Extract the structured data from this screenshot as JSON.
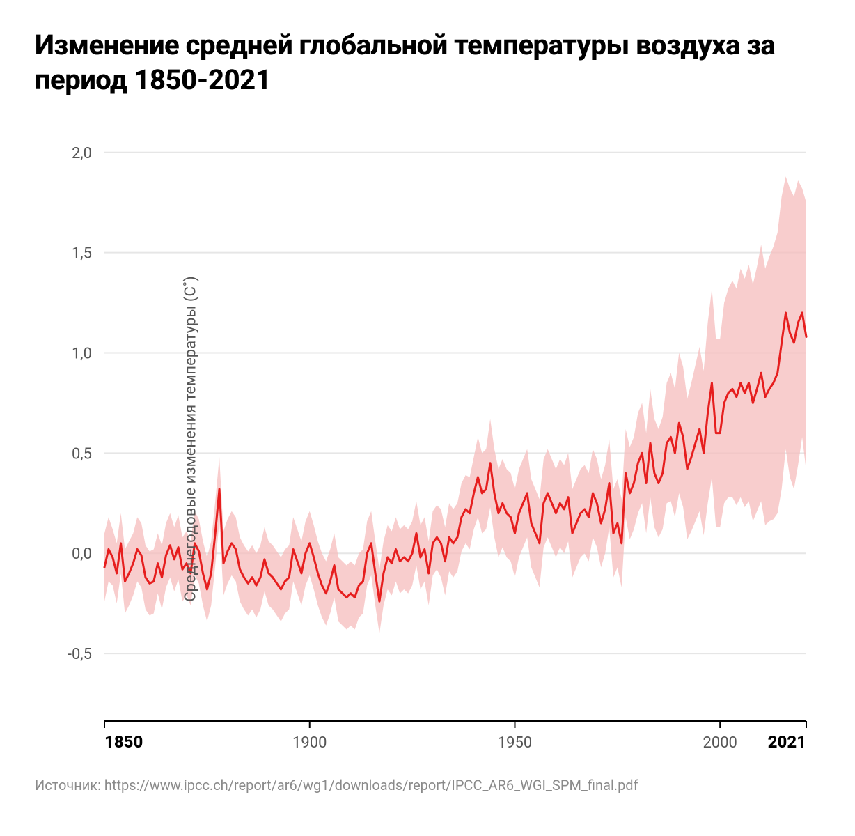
{
  "title": "Изменение средней глобальной температуры воздуха за период 1850-2021",
  "ylabel": "Среднегодовые изменения температуры (C˚)",
  "source": "Источник: https://www.ipcc.ch/report/ar6/wg1/downloads/report/IPCC_AR6_WGI_SPM_final.pdf",
  "chart": {
    "type": "line-with-band",
    "background_color": "#ffffff",
    "grid_color": "#e6e6e6",
    "axis_color": "#000000",
    "line_color": "#e61e1e",
    "line_width": 3,
    "band_color": "#f5bcbc",
    "band_opacity": 0.75,
    "xlim": [
      1850,
      2021
    ],
    "ylim": [
      -0.75,
      2.1
    ],
    "yticks": [
      -0.5,
      0.0,
      0.5,
      1.0,
      1.5,
      2.0
    ],
    "ytick_labels": [
      "-0,5",
      "0,0",
      "0,5",
      "1,0",
      "1,5",
      "2,0"
    ],
    "xticks": [
      1850,
      1900,
      1950,
      2000,
      2021
    ],
    "xtick_labels": [
      "1850",
      "1900",
      "1950",
      "2000",
      "2021"
    ],
    "xtick_bold": [
      1850,
      2021
    ],
    "title_fontsize": 40,
    "label_fontsize": 22,
    "tick_fontsize": 22,
    "years": [
      1850,
      1851,
      1852,
      1853,
      1854,
      1855,
      1856,
      1857,
      1858,
      1859,
      1860,
      1861,
      1862,
      1863,
      1864,
      1865,
      1866,
      1867,
      1868,
      1869,
      1870,
      1871,
      1872,
      1873,
      1874,
      1875,
      1876,
      1877,
      1878,
      1879,
      1880,
      1881,
      1882,
      1883,
      1884,
      1885,
      1886,
      1887,
      1888,
      1889,
      1890,
      1891,
      1892,
      1893,
      1894,
      1895,
      1896,
      1897,
      1898,
      1899,
      1900,
      1901,
      1902,
      1903,
      1904,
      1905,
      1906,
      1907,
      1908,
      1909,
      1910,
      1911,
      1912,
      1913,
      1914,
      1915,
      1916,
      1917,
      1918,
      1919,
      1920,
      1921,
      1922,
      1923,
      1924,
      1925,
      1926,
      1927,
      1928,
      1929,
      1930,
      1931,
      1932,
      1933,
      1934,
      1935,
      1936,
      1937,
      1938,
      1939,
      1940,
      1941,
      1942,
      1943,
      1944,
      1945,
      1946,
      1947,
      1948,
      1949,
      1950,
      1951,
      1952,
      1953,
      1954,
      1955,
      1956,
      1957,
      1958,
      1959,
      1960,
      1961,
      1962,
      1963,
      1964,
      1965,
      1966,
      1967,
      1968,
      1969,
      1970,
      1971,
      1972,
      1973,
      1974,
      1975,
      1976,
      1977,
      1978,
      1979,
      1980,
      1981,
      1982,
      1983,
      1984,
      1985,
      1986,
      1987,
      1988,
      1989,
      1990,
      1991,
      1992,
      1993,
      1994,
      1995,
      1996,
      1997,
      1998,
      1999,
      2000,
      2001,
      2002,
      2003,
      2004,
      2005,
      2006,
      2007,
      2008,
      2009,
      2010,
      2011,
      2012,
      2013,
      2014,
      2015,
      2016,
      2017,
      2018,
      2019,
      2020,
      2021
    ],
    "mean": [
      -0.07,
      0.02,
      -0.02,
      -0.1,
      0.05,
      -0.14,
      -0.1,
      -0.05,
      0.02,
      -0.01,
      -0.12,
      -0.15,
      -0.14,
      -0.05,
      -0.12,
      -0.01,
      0.04,
      -0.03,
      0.03,
      -0.08,
      -0.05,
      -0.1,
      0.05,
      0.01,
      -0.1,
      -0.18,
      -0.1,
      0.1,
      0.32,
      -0.05,
      0.01,
      0.05,
      0.02,
      -0.08,
      -0.12,
      -0.15,
      -0.12,
      -0.16,
      -0.12,
      -0.03,
      -0.1,
      -0.12,
      -0.15,
      -0.18,
      -0.14,
      -0.12,
      0.02,
      -0.04,
      -0.1,
      0.0,
      0.05,
      -0.02,
      -0.1,
      -0.16,
      -0.2,
      -0.14,
      -0.06,
      -0.18,
      -0.2,
      -0.22,
      -0.2,
      -0.22,
      -0.16,
      -0.14,
      0.0,
      0.05,
      -0.1,
      -0.24,
      -0.1,
      -0.02,
      -0.05,
      0.02,
      -0.04,
      -0.02,
      -0.04,
      0.0,
      0.1,
      -0.02,
      0.02,
      -0.1,
      0.05,
      0.08,
      0.05,
      -0.04,
      0.08,
      0.05,
      0.08,
      0.18,
      0.22,
      0.2,
      0.3,
      0.38,
      0.3,
      0.32,
      0.45,
      0.3,
      0.2,
      0.25,
      0.2,
      0.18,
      0.1,
      0.2,
      0.25,
      0.3,
      0.15,
      0.1,
      0.05,
      0.25,
      0.3,
      0.25,
      0.2,
      0.25,
      0.22,
      0.28,
      0.1,
      0.15,
      0.2,
      0.22,
      0.18,
      0.3,
      0.25,
      0.15,
      0.22,
      0.35,
      0.1,
      0.15,
      0.05,
      0.4,
      0.3,
      0.35,
      0.45,
      0.5,
      0.35,
      0.55,
      0.4,
      0.35,
      0.4,
      0.55,
      0.58,
      0.5,
      0.65,
      0.58,
      0.42,
      0.48,
      0.55,
      0.62,
      0.5,
      0.7,
      0.85,
      0.6,
      0.6,
      0.75,
      0.8,
      0.82,
      0.78,
      0.85,
      0.8,
      0.85,
      0.75,
      0.82,
      0.9,
      0.78,
      0.82,
      0.85,
      0.9,
      1.05,
      1.2,
      1.1,
      1.05,
      1.15,
      1.2,
      1.08
    ],
    "upper": [
      0.1,
      0.18,
      0.12,
      0.05,
      0.2,
      0.02,
      0.06,
      0.1,
      0.18,
      0.15,
      0.04,
      0.01,
      0.02,
      0.1,
      0.04,
      0.15,
      0.2,
      0.13,
      0.19,
      0.08,
      0.11,
      0.06,
      0.21,
      0.17,
      0.06,
      -0.02,
      0.06,
      0.26,
      0.48,
      0.11,
      0.17,
      0.21,
      0.18,
      0.08,
      0.04,
      0.01,
      0.04,
      0.0,
      0.04,
      0.13,
      0.06,
      0.04,
      0.01,
      -0.02,
      0.02,
      0.04,
      0.18,
      0.12,
      0.06,
      0.16,
      0.21,
      0.14,
      0.06,
      0.0,
      -0.04,
      0.02,
      0.1,
      -0.02,
      -0.04,
      -0.06,
      -0.04,
      -0.06,
      0.0,
      0.02,
      0.16,
      0.21,
      0.06,
      -0.08,
      0.06,
      0.14,
      0.11,
      0.18,
      0.12,
      0.14,
      0.12,
      0.16,
      0.26,
      0.14,
      0.18,
      0.06,
      0.21,
      0.24,
      0.22,
      0.13,
      0.25,
      0.22,
      0.25,
      0.35,
      0.39,
      0.38,
      0.48,
      0.58,
      0.5,
      0.52,
      0.67,
      0.52,
      0.42,
      0.47,
      0.42,
      0.4,
      0.32,
      0.42,
      0.47,
      0.52,
      0.37,
      0.32,
      0.27,
      0.47,
      0.52,
      0.47,
      0.42,
      0.47,
      0.44,
      0.5,
      0.32,
      0.37,
      0.42,
      0.44,
      0.4,
      0.52,
      0.47,
      0.37,
      0.44,
      0.57,
      0.32,
      0.37,
      0.27,
      0.62,
      0.53,
      0.58,
      0.7,
      0.75,
      0.6,
      0.82,
      0.67,
      0.62,
      0.68,
      0.85,
      0.9,
      0.82,
      1.0,
      0.93,
      0.77,
      0.85,
      0.94,
      1.03,
      0.91,
      1.15,
      1.32,
      1.07,
      1.07,
      1.25,
      1.32,
      1.36,
      1.32,
      1.42,
      1.37,
      1.44,
      1.34,
      1.43,
      1.54,
      1.42,
      1.48,
      1.53,
      1.6,
      1.78,
      1.88,
      1.82,
      1.78,
      1.86,
      1.82,
      1.75
    ],
    "lower": [
      -0.24,
      -0.14,
      -0.16,
      -0.25,
      -0.1,
      -0.3,
      -0.26,
      -0.21,
      -0.14,
      -0.17,
      -0.28,
      -0.31,
      -0.3,
      -0.2,
      -0.28,
      -0.17,
      -0.12,
      -0.19,
      -0.13,
      -0.24,
      -0.21,
      -0.26,
      -0.11,
      -0.15,
      -0.26,
      -0.34,
      -0.26,
      -0.06,
      0.16,
      -0.21,
      -0.15,
      -0.11,
      -0.14,
      -0.24,
      -0.28,
      -0.31,
      -0.28,
      -0.32,
      -0.28,
      -0.19,
      -0.26,
      -0.28,
      -0.31,
      -0.34,
      -0.3,
      -0.28,
      -0.14,
      -0.2,
      -0.26,
      -0.16,
      -0.11,
      -0.18,
      -0.26,
      -0.32,
      -0.36,
      -0.3,
      -0.22,
      -0.34,
      -0.36,
      -0.38,
      -0.36,
      -0.38,
      -0.32,
      -0.3,
      -0.16,
      -0.11,
      -0.26,
      -0.4,
      -0.26,
      -0.18,
      -0.21,
      -0.14,
      -0.2,
      -0.18,
      -0.2,
      -0.16,
      -0.06,
      -0.18,
      -0.14,
      -0.26,
      -0.11,
      -0.08,
      -0.12,
      -0.21,
      -0.09,
      -0.12,
      -0.09,
      0.01,
      0.05,
      0.02,
      0.12,
      0.18,
      0.1,
      0.12,
      0.23,
      0.08,
      -0.02,
      0.03,
      -0.02,
      -0.04,
      -0.12,
      -0.02,
      0.03,
      0.08,
      -0.07,
      -0.12,
      -0.17,
      0.03,
      0.08,
      0.03,
      -0.02,
      0.03,
      0.0,
      0.06,
      -0.12,
      -0.07,
      -0.02,
      0.0,
      -0.04,
      0.08,
      0.03,
      -0.07,
      0.0,
      0.13,
      -0.12,
      -0.07,
      -0.17,
      0.18,
      0.07,
      0.12,
      0.2,
      0.25,
      0.1,
      0.28,
      0.13,
      0.08,
      0.12,
      0.25,
      0.26,
      0.18,
      0.3,
      0.23,
      0.07,
      0.11,
      0.16,
      0.21,
      0.09,
      0.25,
      0.38,
      0.13,
      0.13,
      0.25,
      0.28,
      0.28,
      0.24,
      0.28,
      0.23,
      0.26,
      0.16,
      0.21,
      0.26,
      0.14,
      0.16,
      0.17,
      0.2,
      0.32,
      0.52,
      0.38,
      0.32,
      0.44,
      0.58,
      0.41
    ]
  }
}
